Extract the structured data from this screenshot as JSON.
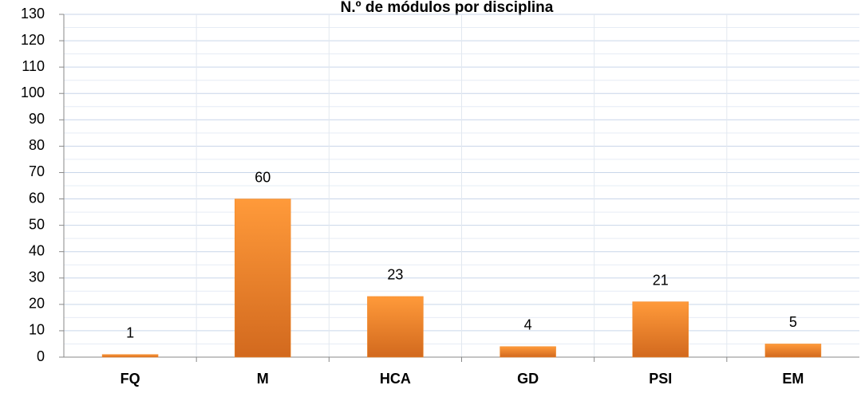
{
  "chart_data": {
    "type": "bar",
    "title": "N.º de módulos por disciplina",
    "categories": [
      "FQ",
      "M",
      "HCA",
      "GD",
      "PSI",
      "EM"
    ],
    "values": [
      1,
      60,
      23,
      4,
      21,
      5
    ],
    "color": "#f28a2a",
    "ylim": [
      0,
      130
    ],
    "yticks": [
      0,
      10,
      20,
      30,
      40,
      50,
      60,
      70,
      80,
      90,
      100,
      110,
      120,
      130
    ],
    "grid": true
  }
}
